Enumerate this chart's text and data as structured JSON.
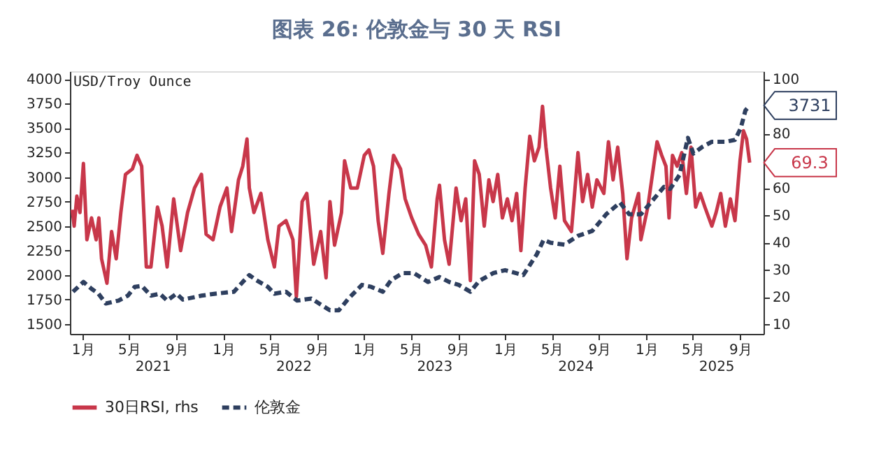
{
  "chart_data": {
    "type": "line",
    "title": "图表 26: 伦敦金与 30 天 RSI",
    "ylabel": "USD/Troy Ounce",
    "xlim": [
      "2020-11-29",
      "2025-11-01"
    ],
    "xticks": [
      {
        "value": "2021-01-01",
        "label": "1月"
      },
      {
        "value": "2021-05-01",
        "label": "5月"
      },
      {
        "value": "2021-09-01",
        "label": "9月"
      },
      {
        "value": "2022-01-01",
        "label": "1月"
      },
      {
        "value": "2022-05-01",
        "label": "5月"
      },
      {
        "value": "2022-09-01",
        "label": "9月"
      },
      {
        "value": "2023-01-01",
        "label": "1月"
      },
      {
        "value": "2023-05-01",
        "label": "5月"
      },
      {
        "value": "2023-09-01",
        "label": "9月"
      },
      {
        "value": "2024-01-01",
        "label": "1月"
      },
      {
        "value": "2024-05-01",
        "label": "5月"
      },
      {
        "value": "2024-09-01",
        "label": "9月"
      },
      {
        "value": "2025-01-01",
        "label": "1月"
      },
      {
        "value": "2025-05-01",
        "label": "5月"
      },
      {
        "value": "2025-09-01",
        "label": "9月"
      }
    ],
    "x2lim": [
      "2020-11-29",
      "2025-11-01"
    ],
    "x2ticks": [
      {
        "value": "2021-07-01",
        "label": "2021"
      },
      {
        "value": "2022-07-01",
        "label": "2022"
      },
      {
        "value": "2023-07-01",
        "label": "2023"
      },
      {
        "value": "2024-07-01",
        "label": "2024"
      },
      {
        "value": "2025-07-01",
        "label": "2025"
      }
    ],
    "ylim": [
      1400,
      4080
    ],
    "yticks": [
      1500,
      1750,
      2000,
      2250,
      2500,
      2750,
      3000,
      3250,
      3500,
      3750,
      4000
    ],
    "y2lim": [
      6.4,
      102.9
    ],
    "y2ticks": [
      10,
      20,
      30,
      40,
      50,
      60,
      {
        "value": 70,
        "label": null
      },
      80,
      {
        "value": 90,
        "label": null
      },
      100
    ],
    "grid": false,
    "legend": "bottom",
    "marker": "none",
    "series": [
      {
        "name": "30日RSI, rhs",
        "color": "#c8374a",
        "axis": "y2",
        "line_style": "solid",
        "x": [
          "2020-12-05",
          "2020-12-10",
          "2020-12-17",
          "2020-12-25",
          "2021-01-03",
          "2021-01-12",
          "2021-01-24",
          "2021-02-05",
          "2021-02-12",
          "2021-02-19",
          "2021-03-05",
          "2021-03-17",
          "2021-03-29",
          "2021-04-10",
          "2021-04-22",
          "2021-05-10",
          "2021-05-22",
          "2021-06-03",
          "2021-06-15",
          "2021-06-27",
          "2021-07-14",
          "2021-07-26",
          "2021-08-08",
          "2021-08-25",
          "2021-09-12",
          "2021-09-30",
          "2021-10-18",
          "2021-11-05",
          "2021-11-17",
          "2021-12-05",
          "2021-12-23",
          "2022-01-10",
          "2022-01-22",
          "2022-02-09",
          "2022-02-20",
          "2022-03-03",
          "2022-03-09",
          "2022-03-21",
          "2022-04-08",
          "2022-04-26",
          "2022-05-13",
          "2022-05-25",
          "2022-06-12",
          "2022-06-30",
          "2022-07-09",
          "2022-07-24",
          "2022-08-05",
          "2022-08-23",
          "2022-09-10",
          "2022-09-24",
          "2022-10-04",
          "2022-10-16",
          "2022-11-03",
          "2022-11-11",
          "2022-11-27",
          "2022-12-14",
          "2023-01-01",
          "2023-01-13",
          "2023-01-25",
          "2023-02-06",
          "2023-02-18",
          "2023-03-06",
          "2023-03-18",
          "2023-04-05",
          "2023-04-17",
          "2023-05-04",
          "2023-05-22",
          "2023-06-09",
          "2023-06-24",
          "2023-07-09",
          "2023-07-15",
          "2023-07-28",
          "2023-08-09",
          "2023-08-27",
          "2023-09-09",
          "2023-09-21",
          "2023-10-03",
          "2023-10-14",
          "2023-10-26",
          "2023-11-08",
          "2023-11-20",
          "2023-12-01",
          "2023-12-13",
          "2023-12-25",
          "2024-01-07",
          "2024-01-19",
          "2024-01-31",
          "2024-02-11",
          "2024-02-22",
          "2024-03-05",
          "2024-03-17",
          "2024-03-29",
          "2024-04-07",
          "2024-04-16",
          "2024-04-28",
          "2024-05-10",
          "2024-05-22",
          "2024-06-03",
          "2024-06-21",
          "2024-07-08",
          "2024-07-20",
          "2024-08-02",
          "2024-08-14",
          "2024-08-26",
          "2024-09-13",
          "2024-09-25",
          "2024-10-07",
          "2024-10-19",
          "2024-11-01",
          "2024-11-12",
          "2024-11-24",
          "2024-12-12",
          "2024-12-18",
          "2025-01-05",
          "2025-01-17",
          "2025-01-29",
          "2025-02-10",
          "2025-02-21",
          "2025-03-01",
          "2025-03-10",
          "2025-03-22",
          "2025-04-03",
          "2025-04-15",
          "2025-04-27",
          "2025-05-09",
          "2025-05-21",
          "2025-06-02",
          "2025-06-20",
          "2025-07-01",
          "2025-07-13",
          "2025-07-25",
          "2025-08-07",
          "2025-08-19",
          "2025-09-01",
          "2025-09-10",
          "2025-09-18",
          "2025-09-26"
        ],
        "values": [
          52,
          46,
          57,
          51,
          69,
          41,
          49,
          41,
          49,
          34,
          25,
          44,
          34,
          51,
          65,
          67,
          72,
          68,
          31,
          31,
          53,
          46,
          31,
          56,
          37,
          51,
          60,
          65,
          43,
          41,
          53,
          60,
          44,
          63,
          68,
          78,
          60,
          51,
          58,
          41,
          31,
          46,
          48,
          41,
          20,
          55,
          58,
          32,
          44,
          27,
          55,
          39,
          51,
          70,
          60,
          60,
          72,
          74,
          68,
          48,
          36,
          58,
          72,
          67,
          56,
          49,
          43,
          39,
          31,
          56,
          61,
          41,
          32,
          60,
          48,
          56,
          26,
          70,
          65,
          46,
          63,
          55,
          65,
          49,
          56,
          48,
          58,
          37,
          60,
          79,
          70,
          75,
          90,
          75,
          60,
          49,
          68,
          48,
          44,
          73,
          55,
          65,
          53,
          63,
          58,
          77,
          63,
          75,
          58,
          34,
          49,
          58,
          41,
          53,
          65,
          77,
          72,
          68,
          49,
          72,
          68,
          73,
          58,
          75,
          53,
          58,
          53,
          46,
          51,
          58,
          46,
          56,
          48,
          70,
          81,
          78,
          69.3
        ]
      },
      {
        "name": "伦敦金",
        "color": "#2e3f5f",
        "axis": "y",
        "line_style": "dashed",
        "x": [
          "2020-12-07",
          "2021-01-03",
          "2021-01-24",
          "2021-02-11",
          "2021-03-02",
          "2021-04-04",
          "2021-04-28",
          "2021-05-16",
          "2021-06-03",
          "2021-06-27",
          "2021-07-20",
          "2021-08-08",
          "2021-09-01",
          "2021-09-18",
          "2021-11-05",
          "2021-12-11",
          "2022-01-28",
          "2022-02-20",
          "2022-03-09",
          "2022-03-26",
          "2022-04-26",
          "2022-05-13",
          "2022-06-12",
          "2022-07-11",
          "2022-08-17",
          "2022-09-10",
          "2022-10-04",
          "2022-10-27",
          "2022-11-21",
          "2022-12-26",
          "2023-01-19",
          "2023-02-18",
          "2023-03-12",
          "2023-04-11",
          "2023-05-10",
          "2023-06-15",
          "2023-07-15",
          "2023-08-09",
          "2023-09-03",
          "2023-10-03",
          "2023-10-26",
          "2023-12-01",
          "2024-01-01",
          "2024-02-17",
          "2024-03-23",
          "2024-04-10",
          "2024-04-28",
          "2024-06-03",
          "2024-07-08",
          "2024-08-14",
          "2024-09-19",
          "2024-10-25",
          "2024-11-18",
          "2024-12-18",
          "2025-01-17",
          "2025-02-16",
          "2025-03-04",
          "2025-03-28",
          "2025-04-19",
          "2025-05-03",
          "2025-05-27",
          "2025-06-20",
          "2025-07-25",
          "2025-08-19",
          "2025-09-03",
          "2025-09-15",
          "2025-09-26"
        ],
        "values": [
          1830,
          1930,
          1860,
          1810,
          1710,
          1740,
          1790,
          1880,
          1890,
          1790,
          1810,
          1740,
          1810,
          1750,
          1790,
          1810,
          1830,
          1930,
          2000,
          1950,
          1880,
          1810,
          1830,
          1740,
          1760,
          1700,
          1640,
          1640,
          1760,
          1900,
          1880,
          1830,
          1950,
          2020,
          2020,
          1930,
          1980,
          1930,
          1900,
          1830,
          1940,
          2020,
          2050,
          2000,
          2210,
          2360,
          2330,
          2310,
          2400,
          2450,
          2620,
          2740,
          2620,
          2620,
          2760,
          2900,
          2880,
          3020,
          3400,
          3240,
          3310,
          3360,
          3360,
          3380,
          3500,
          3680,
          3731
        ]
      }
    ],
    "annotations": [
      "3731",
      "69.3"
    ]
  }
}
